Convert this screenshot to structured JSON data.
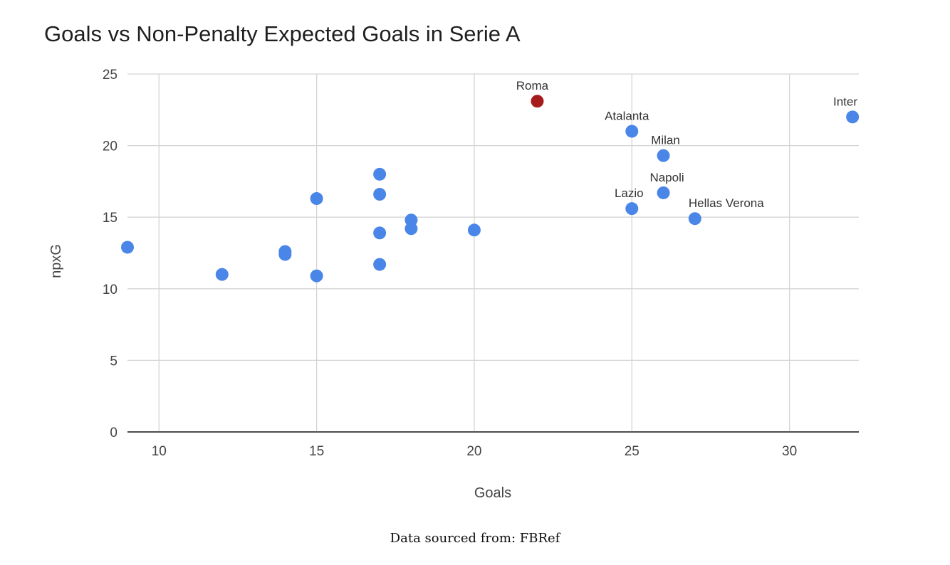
{
  "chart_data": {
    "type": "scatter",
    "title": "Goals vs Non-Penalty Expected Goals in Serie A",
    "xlabel": "Goals",
    "ylabel": "npxG",
    "xlim": [
      9,
      32.2
    ],
    "ylim": [
      0,
      25
    ],
    "xticks": [
      10,
      15,
      20,
      25,
      30
    ],
    "yticks": [
      0,
      5,
      10,
      15,
      20,
      25
    ],
    "grid": true,
    "legend": "none",
    "points": [
      {
        "x": 22,
        "y": 23.1,
        "label": "Roma",
        "highlight": true
      },
      {
        "x": 32,
        "y": 22.0,
        "label": "Inter"
      },
      {
        "x": 25,
        "y": 21.0,
        "label": "Atalanta"
      },
      {
        "x": 26,
        "y": 19.3,
        "label": "Milan"
      },
      {
        "x": 26,
        "y": 16.7,
        "label": "Napoli"
      },
      {
        "x": 25,
        "y": 15.6,
        "label": "Lazio"
      },
      {
        "x": 27,
        "y": 14.9,
        "label": "Hellas Verona"
      },
      {
        "x": 9,
        "y": 12.9
      },
      {
        "x": 12,
        "y": 11.0
      },
      {
        "x": 14,
        "y": 12.6
      },
      {
        "x": 14,
        "y": 12.4
      },
      {
        "x": 15,
        "y": 16.3
      },
      {
        "x": 15,
        "y": 10.9
      },
      {
        "x": 17,
        "y": 18.0
      },
      {
        "x": 17,
        "y": 16.6
      },
      {
        "x": 17,
        "y": 13.9
      },
      {
        "x": 17,
        "y": 11.7
      },
      {
        "x": 18,
        "y": 14.8
      },
      {
        "x": 18,
        "y": 14.2
      },
      {
        "x": 20,
        "y": 14.1
      }
    ],
    "colors": {
      "point": "#4a86e8",
      "highlight": "#a61c1c"
    }
  },
  "caption": "Data sourced from: FBRef"
}
